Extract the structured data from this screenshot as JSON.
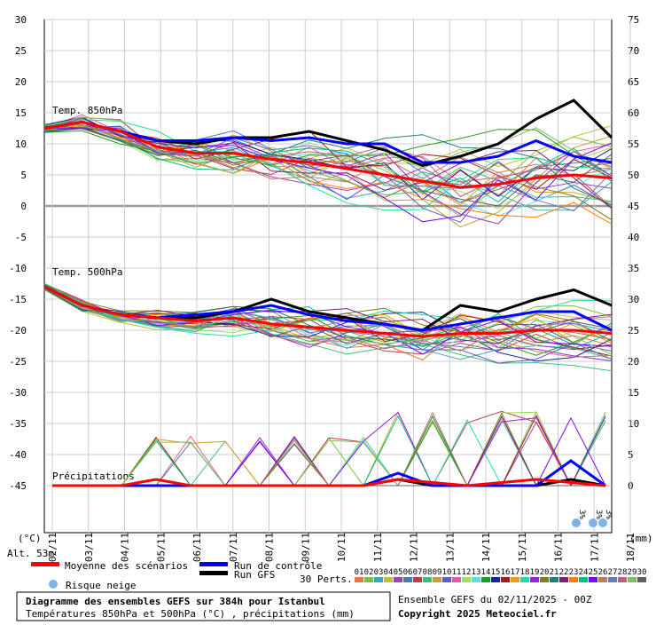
{
  "chart_data": {
    "type": "line",
    "left_axis": {
      "unit": "(°C)",
      "min": -45,
      "max": 30,
      "ticks": [
        30,
        25,
        20,
        15,
        10,
        5,
        0,
        -5,
        -10,
        -15,
        -20,
        -25,
        -30,
        -35,
        -40,
        -45
      ]
    },
    "right_axis": {
      "unit": "(mm)",
      "ticks": [
        75,
        70,
        65,
        60,
        55,
        50,
        45,
        40,
        35,
        30,
        25,
        20,
        15,
        10,
        5,
        0
      ]
    },
    "x_labels": [
      "02/11",
      "03/11",
      "04/11",
      "05/11",
      "06/11",
      "07/11",
      "08/11",
      "09/11",
      "10/11",
      "11/11",
      "12/11",
      "13/11",
      "14/11",
      "15/11",
      "16/11",
      "17/11",
      "18/11"
    ],
    "grid": true,
    "panel_labels": {
      "t850": "Temp. 850hPa",
      "t500": "Temp. 500hPa",
      "precip": "Précipitations"
    },
    "series": [
      {
        "name": "Moyenne des scénarios",
        "color": "#ff0000",
        "t850": [
          12.5,
          13.5,
          12,
          9.5,
          8.5,
          8.5,
          7.5,
          7,
          6,
          5,
          4,
          3,
          3.5,
          4.5,
          5,
          4.5
        ],
        "t500": [
          -13,
          -16,
          -17.5,
          -18,
          -18.5,
          -18,
          -19,
          -19.5,
          -20,
          -20.5,
          -21,
          -20.5,
          -20.5,
          -20,
          -20,
          -20.5
        ],
        "precip": [
          0,
          0,
          0,
          1,
          0,
          0,
          0,
          0,
          0,
          0,
          1,
          0.5,
          0,
          0.5,
          1,
          0.5,
          0
        ]
      },
      {
        "name": "Run de contrôle",
        "color": "#0000ff",
        "t850": [
          12.5,
          13.5,
          12,
          10.5,
          10.5,
          11,
          10.5,
          11,
          10,
          10,
          7,
          7,
          8,
          10.5,
          8,
          7
        ],
        "t500": [
          -13,
          -16,
          -17.5,
          -18,
          -17.5,
          -17,
          -16,
          -17.5,
          -18.5,
          -19,
          -20,
          -19,
          -18,
          -17,
          -17,
          -20
        ],
        "precip": [
          0,
          0,
          0,
          0,
          0,
          0,
          0,
          0,
          0,
          0,
          2,
          0,
          0,
          0,
          0,
          4,
          0
        ]
      },
      {
        "name": "Run GFS",
        "color": "#000000",
        "t850": [
          12.5,
          13.5,
          12,
          10.5,
          10,
          11,
          11,
          12,
          10.5,
          9,
          6.5,
          8,
          10,
          14,
          17,
          11
        ],
        "t500": [
          -13,
          -16,
          -17.5,
          -18,
          -18,
          -17,
          -15,
          -17,
          -18,
          -19,
          -20,
          -16,
          -17,
          -15,
          -13.5,
          -16
        ],
        "precip": [
          0,
          0,
          0,
          0,
          0,
          0,
          0,
          0,
          0,
          0,
          1,
          0,
          0,
          0,
          0,
          1,
          0
        ]
      }
    ],
    "perturbations_count_label": "30 Perts.",
    "perturbation_ids": [
      "01",
      "02",
      "03",
      "04",
      "05",
      "06",
      "07",
      "08",
      "09",
      "10",
      "11",
      "12",
      "13",
      "14",
      "15",
      "16",
      "17",
      "18",
      "19",
      "20",
      "21",
      "22",
      "23",
      "24",
      "25",
      "26",
      "27",
      "28",
      "29",
      "30"
    ],
    "perturbation_colors": [
      "#e07b39",
      "#7fbf3f",
      "#3fa5bf",
      "#bfbf3f",
      "#9f3fbf",
      "#3f7fbf",
      "#bf3f3f",
      "#3fbf7f",
      "#bf9f3f",
      "#5f5fbf",
      "#df5f9f",
      "#9fdf5f",
      "#5fdfdf",
      "#1f9f1f",
      "#1f1f9f",
      "#9f1f1f",
      "#df9f1f",
      "#1fdf9f",
      "#9f1fdf",
      "#7f7f1f",
      "#1f7f7f",
      "#7f1f7f",
      "#ff7f00",
      "#00bf7f",
      "#7f00ff",
      "#bf7f5f",
      "#5f7fbf",
      "#bf5f7f",
      "#7fbf5f",
      "#5f5f5f"
    ],
    "snow_risk_labels": [
      "3%",
      "3%",
      "3%"
    ]
  },
  "legend": {
    "mean": "Moyenne des scénarios",
    "control": "Run de contrôle",
    "gfs": "Run GFS",
    "snow": "Risque neige"
  },
  "altitude": "Alt. 53m",
  "footer": {
    "title": "Diagramme des ensembles GEFS sur 384h pour Istanbul",
    "subtitle": "Températures 850hPa et 500hPa (°C) , précipitations (mm)",
    "run": "Ensemble GEFS du 02/11/2025 - 00Z",
    "copyright": "Copyright 2025 Meteociel.fr"
  }
}
